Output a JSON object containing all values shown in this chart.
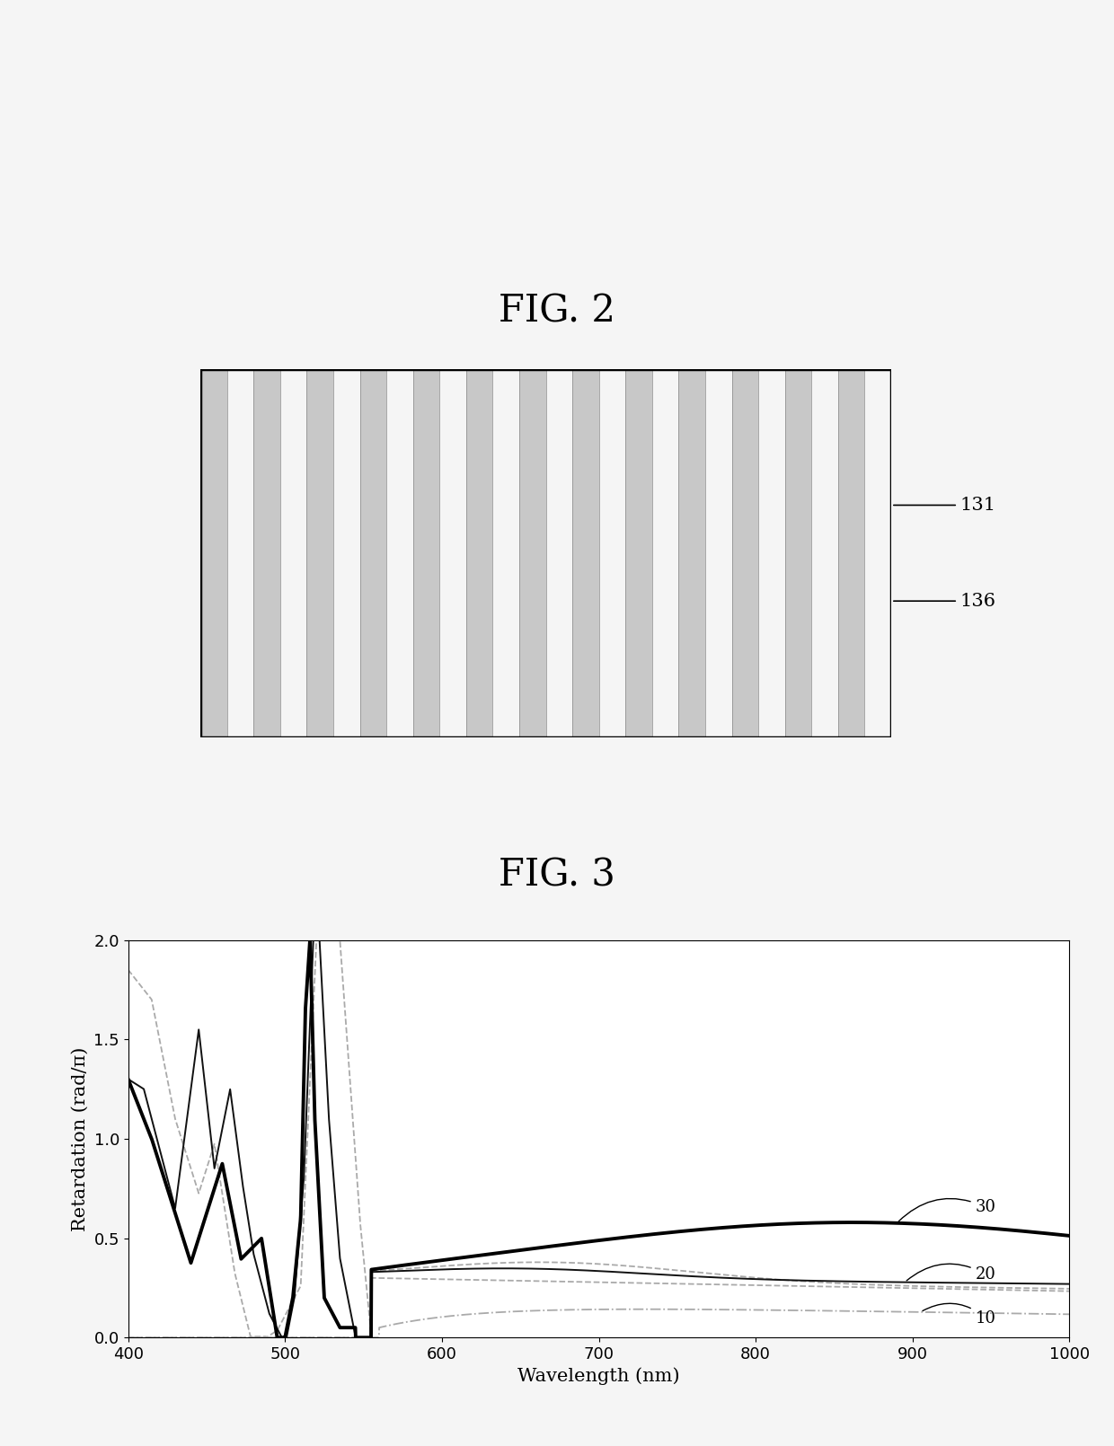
{
  "fig2_title": "FIG. 2",
  "fig3_title": "FIG. 3",
  "label_131": "131",
  "label_136": "136",
  "label_10": "10",
  "label_20": "20",
  "label_30": "30",
  "xlabel": "Wavelength (nm)",
  "ylabel": "Retardation (rad/π)",
  "xlim": [
    400,
    1000
  ],
  "ylim": [
    0,
    2
  ],
  "xticks": [
    400,
    500,
    600,
    700,
    800,
    900,
    1000
  ],
  "yticks": [
    0,
    0.5,
    1.0,
    1.5,
    2
  ],
  "num_stripe_pairs": 13,
  "stripe_gray": "#c8c8c8",
  "stripe_white": "#f5f5f5",
  "rect_border": "#000000",
  "fig_title_fontsize": 30,
  "axis_label_fontsize": 15,
  "tick_fontsize": 13,
  "background": "#f5f5f5"
}
